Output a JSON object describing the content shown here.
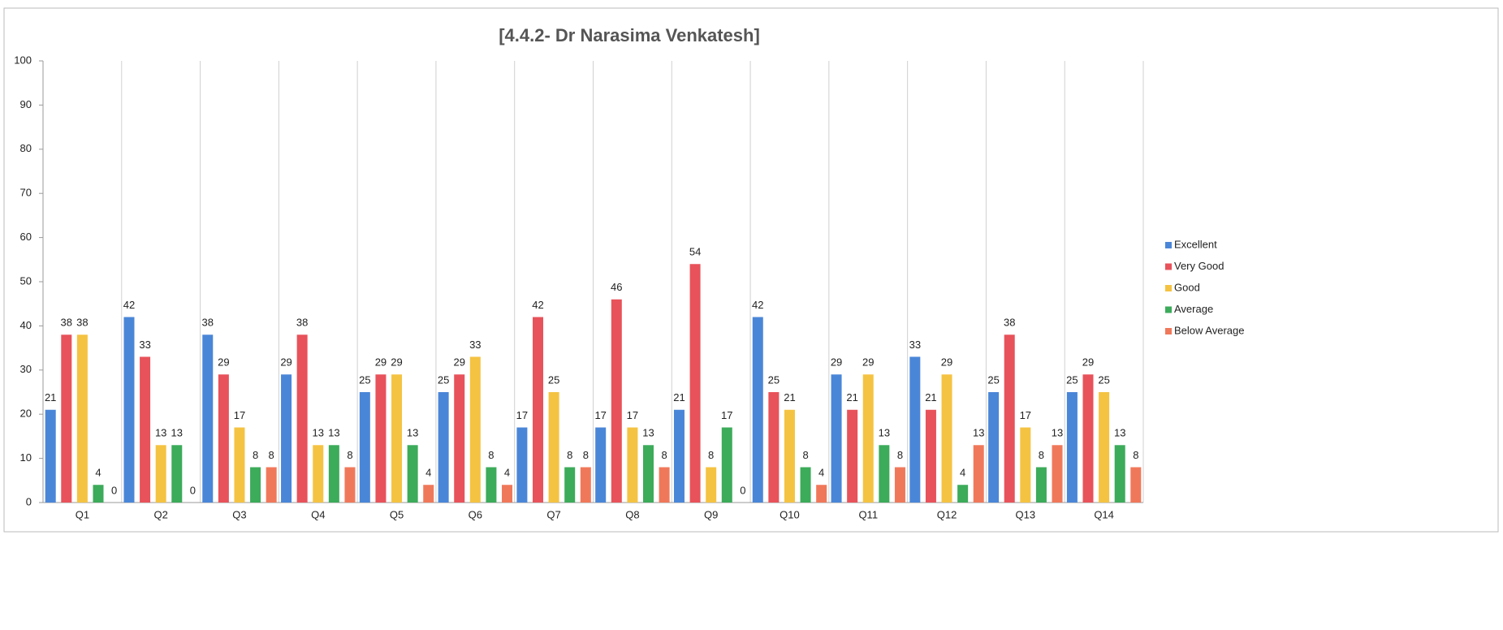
{
  "chart_data": {
    "type": "bar",
    "title": "[4.4.2- Dr Narasima Venkatesh]",
    "categories": [
      "Q1",
      "Q2",
      "Q3",
      "Q4",
      "Q5",
      "Q6",
      "Q7",
      "Q8",
      "Q9",
      "Q10",
      "Q11",
      "Q12",
      "Q13",
      "Q14"
    ],
    "series": [
      {
        "name": "Excellent",
        "color": "#4a86d8",
        "values": [
          21,
          42,
          38,
          29,
          25,
          25,
          17,
          17,
          21,
          42,
          29,
          33,
          25,
          25
        ]
      },
      {
        "name": "Very Good",
        "color": "#e8525a",
        "values": [
          38,
          33,
          29,
          38,
          29,
          29,
          42,
          46,
          54,
          25,
          21,
          21,
          38,
          29
        ]
      },
      {
        "name": "Good",
        "color": "#f5c342",
        "values": [
          38,
          13,
          17,
          13,
          29,
          33,
          25,
          17,
          8,
          21,
          29,
          29,
          17,
          25
        ]
      },
      {
        "name": "Average",
        "color": "#3cab5a",
        "values": [
          4,
          13,
          8,
          13,
          13,
          8,
          8,
          13,
          17,
          8,
          13,
          4,
          8,
          13
        ]
      },
      {
        "name": "Below Average",
        "color": "#f0785a",
        "values": [
          0,
          0,
          8,
          8,
          4,
          4,
          8,
          8,
          0,
          4,
          8,
          13,
          13,
          8
        ]
      }
    ],
    "ylim": [
      0,
      100
    ],
    "yticks": [
      0,
      10,
      20,
      30,
      40,
      50,
      60,
      70,
      80,
      90,
      100
    ],
    "grid": false,
    "legend": "right"
  }
}
